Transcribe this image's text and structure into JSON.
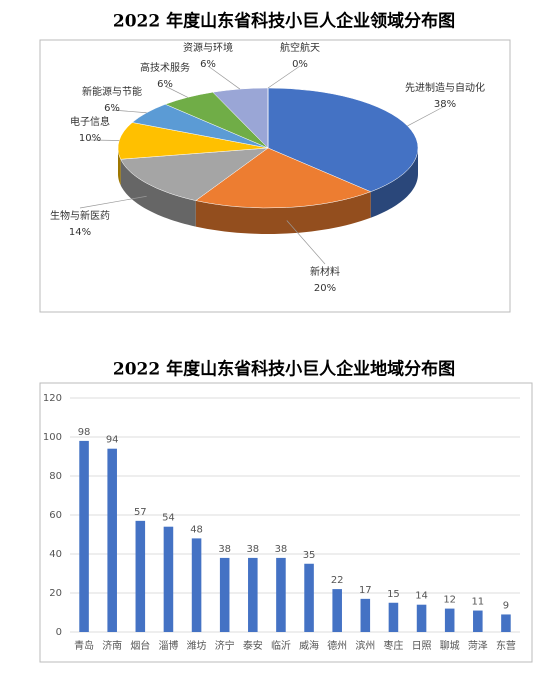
{
  "chart_data": [
    {
      "type": "pie3d",
      "title": "2022 年度山东省科技小巨人企业领域分布图",
      "categories": [
        "先进制造与自动化",
        "新材料",
        "生物与新医药",
        "电子信息",
        "新能源与节能",
        "高技术服务",
        "资源与环境",
        "航空航天"
      ],
      "values": [
        38,
        20,
        14,
        10,
        6,
        6,
        6,
        0
      ],
      "value_labels": [
        "38%",
        "20%",
        "14%",
        "10%",
        "6%",
        "6%",
        "6%",
        "0%"
      ],
      "colors": [
        "#4472c4",
        "#ed7d31",
        "#a5a5a5",
        "#ffc000",
        "#5b9bd5",
        "#70ad47",
        "#9aa6d6",
        "#e8a0a0"
      ]
    },
    {
      "type": "bar",
      "title": "2022 年度山东省科技小巨人企业地域分布图",
      "categories": [
        "青岛",
        "济南",
        "烟台",
        "淄博",
        "潍坊",
        "济宁",
        "泰安",
        "临沂",
        "威海",
        "德州",
        "滨州",
        "枣庄",
        "日照",
        "聊城",
        "菏泽",
        "东营"
      ],
      "values": [
        98,
        94,
        57,
        54,
        48,
        38,
        38,
        38,
        35,
        22,
        17,
        15,
        14,
        12,
        11,
        9
      ],
      "color": "#4472c4",
      "ylim": [
        0,
        120
      ],
      "yticks": [
        0,
        20,
        40,
        60,
        80,
        100,
        120
      ],
      "grid": true
    }
  ]
}
